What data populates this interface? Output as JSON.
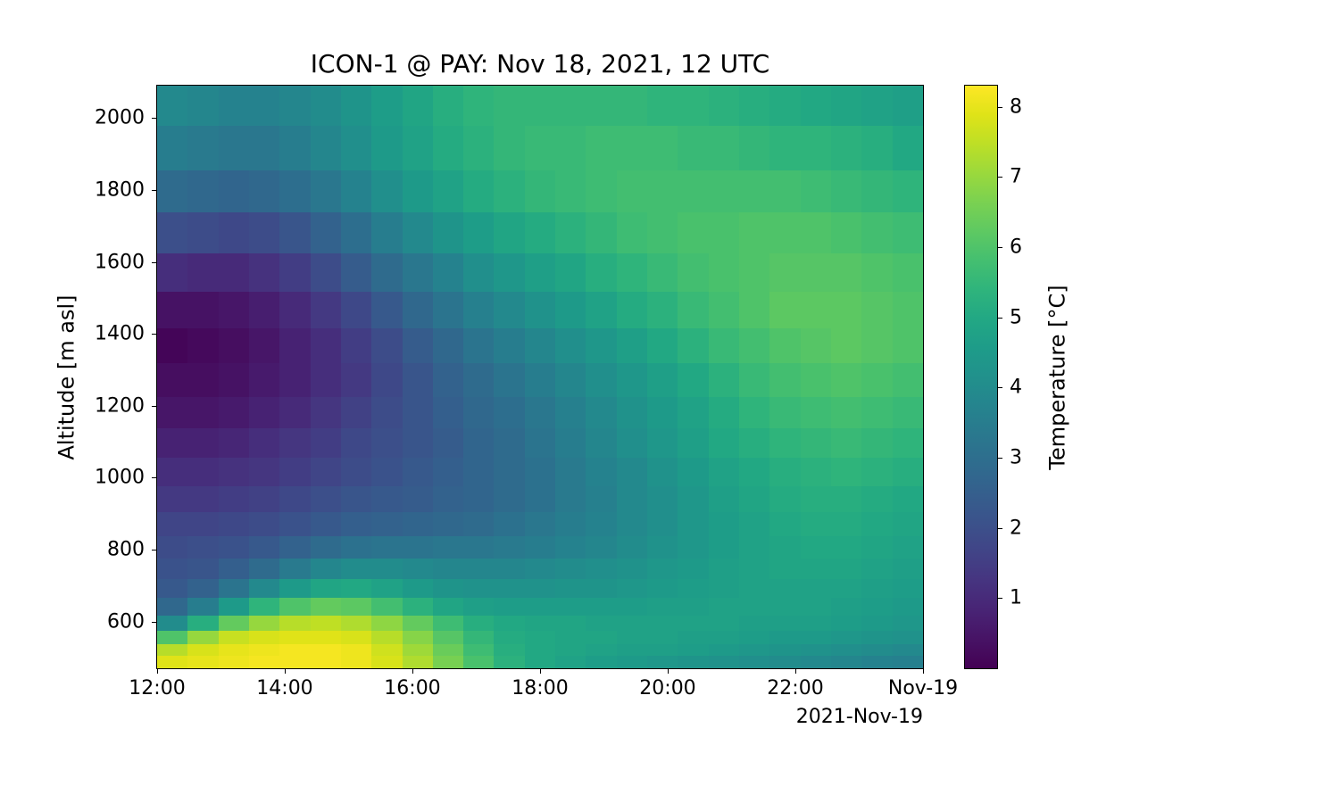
{
  "chart": {
    "type": "heatmap",
    "title": "ICON-1 @ PAY: Nov 18, 2021, 12 UTC",
    "title_fontsize": 28,
    "ylabel": "Altitude [m asl]",
    "label_fontsize": 24,
    "cbar_label": "Temperature [°C]",
    "background_color": "#ffffff",
    "tick_fontsize": 22,
    "colormap": "viridis",
    "viridis_stops": [
      [
        0.0,
        "#440154"
      ],
      [
        0.05,
        "#471365"
      ],
      [
        0.1,
        "#482475"
      ],
      [
        0.15,
        "#463480"
      ],
      [
        0.2,
        "#414487"
      ],
      [
        0.25,
        "#3b528b"
      ],
      [
        0.3,
        "#355f8d"
      ],
      [
        0.35,
        "#2f6c8e"
      ],
      [
        0.4,
        "#2a788e"
      ],
      [
        0.45,
        "#25848e"
      ],
      [
        0.5,
        "#21918c"
      ],
      [
        0.55,
        "#1e9c89"
      ],
      [
        0.6,
        "#22a884"
      ],
      [
        0.65,
        "#2fb47c"
      ],
      [
        0.7,
        "#44bf70"
      ],
      [
        0.75,
        "#5ec962"
      ],
      [
        0.8,
        "#7ad151"
      ],
      [
        0.85,
        "#9bd93c"
      ],
      [
        0.9,
        "#bddf26"
      ],
      [
        0.95,
        "#dfe318"
      ],
      [
        1.0,
        "#fde725"
      ]
    ],
    "value_min": 0.0,
    "value_max": 8.3,
    "cbar_ticks": [
      1,
      2,
      3,
      4,
      5,
      6,
      7,
      8
    ],
    "x": {
      "n": 25,
      "ticks": [
        {
          "i": 0,
          "label": "12:00"
        },
        {
          "i": 4,
          "label": "14:00"
        },
        {
          "i": 8,
          "label": "16:00"
        },
        {
          "i": 12,
          "label": "18:00"
        },
        {
          "i": 16,
          "label": "20:00"
        },
        {
          "i": 20,
          "label": "22:00"
        },
        {
          "i": 24,
          "label": "Nov-19"
        }
      ],
      "offset_text": "2021-Nov-19"
    },
    "y": {
      "min": 470,
      "max": 2090,
      "ticks": [
        600,
        800,
        1000,
        1200,
        1400,
        1600,
        1800,
        2000
      ],
      "levels": [
        490,
        520,
        555,
        595,
        640,
        690,
        745,
        805,
        870,
        940,
        1015,
        1095,
        1180,
        1270,
        1365,
        1465,
        1570,
        1680,
        1795,
        1915,
        2040
      ]
    },
    "values": [
      [
        7.9,
        8.0,
        8.1,
        8.2,
        8.2,
        8.2,
        8.1,
        7.8,
        7.3,
        6.6,
        5.9,
        5.3,
        5.0,
        4.8,
        4.6,
        4.5,
        4.4,
        4.3,
        4.2,
        4.1,
        4.0,
        3.9,
        3.8,
        3.7,
        3.6
      ],
      [
        7.4,
        7.8,
        8.0,
        8.1,
        8.2,
        8.2,
        8.1,
        7.7,
        7.1,
        6.4,
        5.7,
        5.2,
        5.0,
        4.9,
        4.8,
        4.7,
        4.7,
        4.6,
        4.5,
        4.4,
        4.3,
        4.2,
        4.1,
        4.0,
        3.9
      ],
      [
        6.0,
        7.0,
        7.6,
        7.8,
        7.9,
        7.9,
        7.8,
        7.4,
        6.8,
        6.1,
        5.5,
        5.1,
        5.0,
        4.9,
        4.9,
        4.8,
        4.8,
        4.7,
        4.7,
        4.6,
        4.5,
        4.5,
        4.4,
        4.3,
        4.2
      ],
      [
        4.0,
        5.2,
        6.3,
        7.0,
        7.4,
        7.5,
        7.3,
        6.9,
        6.3,
        5.7,
        5.2,
        5.0,
        4.9,
        4.9,
        4.8,
        4.8,
        4.8,
        4.8,
        4.8,
        4.7,
        4.7,
        4.7,
        4.6,
        4.5,
        4.4
      ],
      [
        2.8,
        3.5,
        4.5,
        5.4,
        6.0,
        6.3,
        6.2,
        5.8,
        5.3,
        4.9,
        4.7,
        4.6,
        4.6,
        4.6,
        4.6,
        4.6,
        4.7,
        4.7,
        4.8,
        4.8,
        4.8,
        4.8,
        4.7,
        4.6,
        4.5
      ],
      [
        2.3,
        2.6,
        3.2,
        3.9,
        4.5,
        4.9,
        5.0,
        4.8,
        4.5,
        4.3,
        4.2,
        4.2,
        4.2,
        4.3,
        4.3,
        4.4,
        4.5,
        4.6,
        4.7,
        4.8,
        4.8,
        4.8,
        4.8,
        4.7,
        4.6
      ],
      [
        2.1,
        2.2,
        2.5,
        2.9,
        3.4,
        3.8,
        4.0,
        4.0,
        3.9,
        3.8,
        3.8,
        3.8,
        3.9,
        4.0,
        4.1,
        4.2,
        4.4,
        4.5,
        4.7,
        4.8,
        4.9,
        4.9,
        4.9,
        4.8,
        4.7
      ],
      [
        1.9,
        2.0,
        2.1,
        2.3,
        2.6,
        2.9,
        3.1,
        3.2,
        3.2,
        3.3,
        3.3,
        3.4,
        3.5,
        3.7,
        3.8,
        4.0,
        4.2,
        4.4,
        4.6,
        4.8,
        4.9,
        5.0,
        5.0,
        4.9,
        4.8
      ],
      [
        1.7,
        1.7,
        1.8,
        1.9,
        2.1,
        2.3,
        2.5,
        2.6,
        2.7,
        2.8,
        2.9,
        3.1,
        3.3,
        3.5,
        3.7,
        3.9,
        4.1,
        4.4,
        4.6,
        4.8,
        5.0,
        5.1,
        5.1,
        5.0,
        4.9
      ],
      [
        1.4,
        1.4,
        1.5,
        1.6,
        1.8,
        2.0,
        2.2,
        2.3,
        2.4,
        2.6,
        2.7,
        2.9,
        3.1,
        3.4,
        3.6,
        3.9,
        4.1,
        4.4,
        4.7,
        4.9,
        5.1,
        5.2,
        5.2,
        5.1,
        5.0
      ],
      [
        1.1,
        1.1,
        1.2,
        1.3,
        1.5,
        1.7,
        1.9,
        2.1,
        2.3,
        2.5,
        2.7,
        2.9,
        3.1,
        3.4,
        3.7,
        3.9,
        4.2,
        4.5,
        4.8,
        5.0,
        5.2,
        5.3,
        5.4,
        5.3,
        5.2
      ],
      [
        0.8,
        0.8,
        0.9,
        1.1,
        1.3,
        1.5,
        1.8,
        2.0,
        2.2,
        2.4,
        2.7,
        2.9,
        3.2,
        3.5,
        3.8,
        4.1,
        4.4,
        4.7,
        5.0,
        5.2,
        5.4,
        5.5,
        5.6,
        5.5,
        5.4
      ],
      [
        0.5,
        0.5,
        0.6,
        0.8,
        1.0,
        1.3,
        1.6,
        1.9,
        2.2,
        2.5,
        2.8,
        3.0,
        3.3,
        3.6,
        3.9,
        4.2,
        4.5,
        4.8,
        5.1,
        5.4,
        5.6,
        5.7,
        5.8,
        5.7,
        5.6
      ],
      [
        0.3,
        0.3,
        0.4,
        0.6,
        0.8,
        1.1,
        1.4,
        1.8,
        2.2,
        2.6,
        2.9,
        3.2,
        3.5,
        3.8,
        4.1,
        4.4,
        4.7,
        5.0,
        5.3,
        5.6,
        5.8,
        5.9,
        6.0,
        5.9,
        5.8
      ],
      [
        0.1,
        0.2,
        0.3,
        0.5,
        0.8,
        1.1,
        1.5,
        1.9,
        2.4,
        2.8,
        3.2,
        3.5,
        3.8,
        4.1,
        4.4,
        4.7,
        5.0,
        5.3,
        5.6,
        5.8,
        6.0,
        6.1,
        6.2,
        6.1,
        6.0
      ],
      [
        0.4,
        0.4,
        0.5,
        0.7,
        1.0,
        1.4,
        1.8,
        2.3,
        2.8,
        3.2,
        3.6,
        3.9,
        4.2,
        4.5,
        4.8,
        5.1,
        5.3,
        5.6,
        5.8,
        6.0,
        6.2,
        6.2,
        6.2,
        6.1,
        6.0
      ],
      [
        1.1,
        1.0,
        1.0,
        1.2,
        1.5,
        1.9,
        2.4,
        2.9,
        3.3,
        3.7,
        4.1,
        4.4,
        4.7,
        4.9,
        5.2,
        5.4,
        5.6,
        5.8,
        5.9,
        6.0,
        6.1,
        6.1,
        6.1,
        6.0,
        5.9
      ],
      [
        2.0,
        1.9,
        1.8,
        1.9,
        2.2,
        2.6,
        3.0,
        3.5,
        3.9,
        4.3,
        4.6,
        4.9,
        5.1,
        5.3,
        5.5,
        5.7,
        5.8,
        5.9,
        5.9,
        6.0,
        6.0,
        6.0,
        5.9,
        5.8,
        5.7
      ],
      [
        2.9,
        2.8,
        2.7,
        2.8,
        3.0,
        3.3,
        3.7,
        4.1,
        4.5,
        4.8,
        5.1,
        5.3,
        5.5,
        5.6,
        5.7,
        5.8,
        5.8,
        5.8,
        5.8,
        5.8,
        5.8,
        5.7,
        5.6,
        5.5,
        5.4
      ],
      [
        3.5,
        3.4,
        3.3,
        3.3,
        3.5,
        3.8,
        4.1,
        4.5,
        4.8,
        5.1,
        5.3,
        5.5,
        5.6,
        5.6,
        5.7,
        5.7,
        5.7,
        5.6,
        5.6,
        5.5,
        5.4,
        5.4,
        5.3,
        5.2,
        5.0
      ],
      [
        3.9,
        3.8,
        3.7,
        3.7,
        3.8,
        4.0,
        4.3,
        4.6,
        4.9,
        5.2,
        5.4,
        5.5,
        5.5,
        5.5,
        5.5,
        5.5,
        5.4,
        5.4,
        5.3,
        5.2,
        5.1,
        5.0,
        4.9,
        4.8,
        4.7
      ]
    ]
  }
}
